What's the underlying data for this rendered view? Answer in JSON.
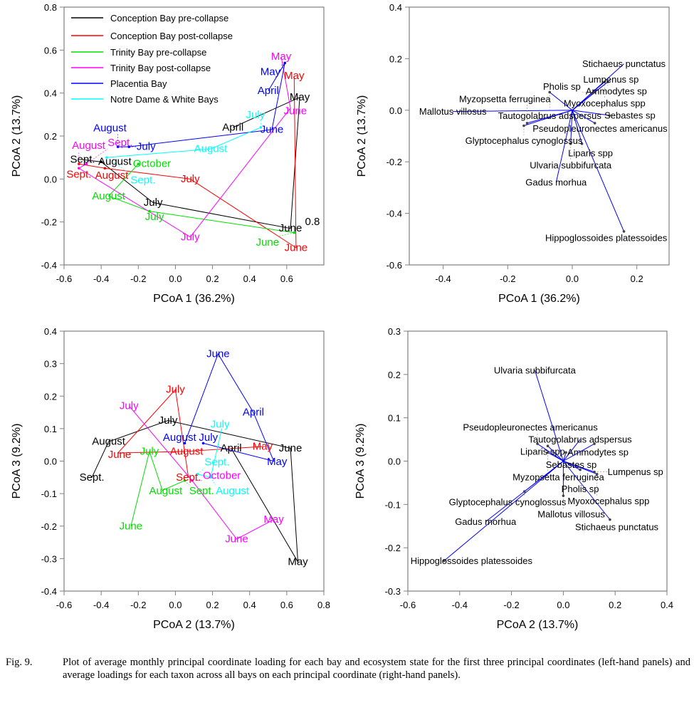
{
  "chart_data": [
    {
      "type": "line",
      "panel": "top-left",
      "xlabel": "PCoA 1 (36.2%)",
      "ylabel": "PCoA 2 (13.7%)",
      "xlim": [
        -0.6,
        0.8
      ],
      "ylim": [
        -0.4,
        0.8
      ],
      "xticks": [
        "-0.6",
        "-0.4",
        "-0.2",
        "0.0",
        "0.2",
        "0.4",
        "0.6"
      ],
      "yticks": [
        "-0.4",
        "-0.2",
        "0.0",
        "0.2",
        "0.4",
        "0.6",
        "0.8"
      ],
      "legend_position": "top-left",
      "annotation": {
        "text": "0.8",
        "x": 0.72,
        "y": -0.2
      },
      "series": [
        {
          "name": "Conception Bay pre-collapse",
          "color": "#000000",
          "points": [
            {
              "label": "Sept.",
              "x": -0.5,
              "y": 0.09
            },
            {
              "label": "August",
              "x": -0.4,
              "y": 0.08
            },
            {
              "label": "July",
              "x": -0.12,
              "y": -0.11
            },
            {
              "label": "June",
              "x": 0.62,
              "y": -0.23
            },
            {
              "label": "May",
              "x": 0.67,
              "y": 0.38
            },
            {
              "label": "April",
              "x": 0.31,
              "y": 0.24
            }
          ]
        },
        {
          "name": "Conception Bay post-collapse",
          "color": "#ff0000",
          "points": [
            {
              "label": "May",
              "x": 0.64,
              "y": 0.48
            },
            {
              "label": "June",
              "x": 0.65,
              "y": -0.32
            },
            {
              "label": "July",
              "x": 0.08,
              "y": 0.0
            },
            {
              "label": "August",
              "x": -0.38,
              "y": 0.05
            },
            {
              "label": "Sept.",
              "x": -0.52,
              "y": 0.07
            }
          ]
        },
        {
          "name": "Trinity Bay pre-collapse",
          "color": "#00e000",
          "points": [
            {
              "label": "June",
              "x": 0.64,
              "y": -0.25
            },
            {
              "label": "July",
              "x": -0.14,
              "y": -0.15
            },
            {
              "label": "August",
              "x": -0.36,
              "y": -0.08
            },
            {
              "label": "October",
              "x": -0.2,
              "y": 0.07
            }
          ]
        },
        {
          "name": "Trinity Bay post-collapse",
          "color": "#ff00ff",
          "points": [
            {
              "label": "May",
              "x": 0.57,
              "y": 0.57
            },
            {
              "label": "June",
              "x": 0.62,
              "y": 0.33
            },
            {
              "label": "July",
              "x": 0.08,
              "y": -0.27
            },
            {
              "label": "August",
              "x": -0.52,
              "y": 0.05
            },
            {
              "label": "Sept.",
              "x": -0.48,
              "y": 0.07
            }
          ]
        },
        {
          "name": "Placentia Bay",
          "color": "#0000ff",
          "points": [
            {
              "label": "April",
              "x": 0.5,
              "y": 0.41
            },
            {
              "label": "May",
              "x": 0.59,
              "y": 0.54
            },
            {
              "label": "June",
              "x": 0.52,
              "y": 0.23
            },
            {
              "label": "July",
              "x": -0.25,
              "y": 0.15
            },
            {
              "label": "August",
              "x": -0.31,
              "y": 0.15
            }
          ]
        },
        {
          "name": "Notre Dame & White Bays",
          "color": "#00ffff",
          "points": [
            {
              "label": "July",
              "x": 0.46,
              "y": 0.24
            },
            {
              "label": "August",
              "x": 0.19,
              "y": 0.14
            },
            {
              "label": "Sept.",
              "x": -0.37,
              "y": 0.1
            }
          ]
        }
      ]
    },
    {
      "type": "biplot",
      "panel": "top-right",
      "xlabel": "PCoA 1 (36.2%)",
      "ylabel": "PCoA 2 (13.7%)",
      "xlim": [
        -0.505,
        0.3
      ],
      "ylim": [
        -0.6,
        0.4
      ],
      "xticks": [
        "-0.4",
        "-0.2",
        "0.0",
        "0.2"
      ],
      "yticks": [
        "-0.6",
        "-0.4",
        "-0.2",
        "0.0",
        "0.2",
        "0.4"
      ],
      "vector_color": "#0000ff",
      "vectors": [
        {
          "label": "Stichaeus punctatus",
          "x": 0.16,
          "y": 0.18
        },
        {
          "label": "Lumpenus sp",
          "x": 0.12,
          "y": 0.12
        },
        {
          "label": "Ammodytes sp",
          "x": 0.11,
          "y": 0.11
        },
        {
          "label": "Myoxocephalus spp",
          "x": 0.1,
          "y": 0.11
        },
        {
          "label": "Pholis sp",
          "x": 0.07,
          "y": 0.07
        },
        {
          "label": "Tautogolabrus adspersus",
          "x": -0.07,
          "y": 0.07
        },
        {
          "label": "Mallotus villosus",
          "x": -0.37,
          "y": -0.005
        },
        {
          "label": "Sebastes sp",
          "x": 0.115,
          "y": -0.02
        },
        {
          "label": "Pseudopleuronectes americanus",
          "x": 0.07,
          "y": -0.05
        },
        {
          "label": "Glyptocephalus cynoglossus",
          "x": -0.15,
          "y": -0.06
        },
        {
          "label": "Myzopsetta ferruginea",
          "x": -0.14,
          "y": -0.05
        },
        {
          "label": "Liparis spp",
          "x": 0.03,
          "y": -0.13
        },
        {
          "label": "Ulvaria subbifurcata",
          "x": -0.005,
          "y": -0.13
        },
        {
          "label": "Gadus morhua",
          "x": -0.05,
          "y": -0.28
        },
        {
          "label": "Hippoglossoides platessoides",
          "x": 0.16,
          "y": -0.47
        }
      ]
    },
    {
      "type": "line",
      "panel": "bottom-left",
      "xlabel": "PCoA 2 (13.7%)",
      "ylabel": "PCoA 3 (9.2%)",
      "xlim": [
        -0.6,
        0.8
      ],
      "ylim": [
        -0.4,
        0.4
      ],
      "xticks": [
        "-0.6",
        "-0.4",
        "-0.2",
        "0.0",
        "0.2",
        "0.4",
        "0.6",
        "0.8"
      ],
      "yticks": [
        "-0.4",
        "-0.3",
        "-0.2",
        "-0.1",
        "0.0",
        "0.1",
        "0.2",
        "0.3",
        "0.4"
      ],
      "series": [
        {
          "name": "Conception Bay pre-collapse",
          "color": "#000000",
          "points": [
            {
              "label": "Sept.",
              "x": -0.45,
              "y": -0.05
            },
            {
              "label": "August",
              "x": -0.36,
              "y": 0.06
            },
            {
              "label": "July",
              "x": -0.04,
              "y": 0.125
            },
            {
              "label": "June",
              "x": 0.62,
              "y": 0.04
            },
            {
              "label": "May",
              "x": 0.66,
              "y": -0.31
            },
            {
              "label": "April",
              "x": 0.3,
              "y": 0.04
            }
          ]
        },
        {
          "name": "Conception Bay post-collapse",
          "color": "#ff0000",
          "points": [
            {
              "label": "May",
              "x": 0.47,
              "y": 0.045
            },
            {
              "label": "August",
              "x": 0.06,
              "y": 0.03
            },
            {
              "label": "June",
              "x": -0.31,
              "y": 0.025
            },
            {
              "label": "July",
              "x": 0.0,
              "y": 0.22
            },
            {
              "label": "Sept.",
              "x": 0.07,
              "y": -0.05
            }
          ]
        },
        {
          "name": "Trinity Bay pre-collapse",
          "color": "#00e000",
          "points": [
            {
              "label": "June",
              "x": -0.24,
              "y": -0.2
            },
            {
              "label": "July",
              "x": -0.14,
              "y": 0.03
            },
            {
              "label": "August",
              "x": -0.07,
              "y": -0.09
            },
            {
              "label": "Sept.",
              "x": 0.05,
              "y": -0.06
            }
          ]
        },
        {
          "name": "Trinity Bay post-collapse",
          "color": "#ff00ff",
          "points": [
            {
              "label": "July",
              "x": -0.25,
              "y": 0.17
            },
            {
              "label": "October",
              "x": 0.09,
              "y": -0.06
            },
            {
              "label": "June",
              "x": 0.33,
              "y": -0.24
            },
            {
              "label": "May",
              "x": 0.53,
              "y": -0.18
            }
          ]
        },
        {
          "name": "Placentia Bay",
          "color": "#0000ff",
          "points": [
            {
              "label": "August",
              "x": 0.05,
              "y": 0.055
            },
            {
              "label": "June",
              "x": 0.23,
              "y": 0.33
            },
            {
              "label": "April",
              "x": 0.42,
              "y": 0.15
            },
            {
              "label": "May",
              "x": 0.53,
              "y": 0.0
            },
            {
              "label": "July",
              "x": 0.15,
              "y": 0.055
            }
          ]
        },
        {
          "name": "Notre Dame & White Bays",
          "color": "#00ffff",
          "points": [
            {
              "label": "July",
              "x": 0.25,
              "y": 0.1
            },
            {
              "label": "August",
              "x": 0.19,
              "y": -0.05
            },
            {
              "label": "Sept.",
              "x": 0.12,
              "y": -0.04
            }
          ]
        }
      ]
    },
    {
      "type": "biplot",
      "panel": "bottom-right",
      "xlabel": "PCoA 2 (13.7%)",
      "ylabel": "PCoA 3 (9.2%)",
      "xlim": [
        -0.6,
        0.4
      ],
      "ylim": [
        -0.3,
        0.3
      ],
      "xticks": [
        "-0.6",
        "-0.4",
        "-0.2",
        "0.0",
        "0.2",
        "0.4"
      ],
      "yticks": [
        "-0.3",
        "-0.2",
        "-0.1",
        "0.0",
        "0.1",
        "0.2",
        "0.3"
      ],
      "vector_color": "#0000ff",
      "vectors": [
        {
          "label": "Ulvaria subbifurcata",
          "x": -0.11,
          "y": 0.21
        },
        {
          "label": "Tautogolabrus adspersus",
          "x": 0.065,
          "y": 0.05
        },
        {
          "label": "Ammodytes sp",
          "x": 0.12,
          "y": 0.04
        },
        {
          "label": "Liparis spp",
          "x": -0.06,
          "y": 0.035
        },
        {
          "label": "Pseudopleuronectes americanus",
          "x": -0.1,
          "y": 0.04
        },
        {
          "label": "Sebastes sp",
          "x": 0.01,
          "y": 0.02
        },
        {
          "label": "Myzopsetta ferruginea",
          "x": -0.06,
          "y": 0.02
        },
        {
          "label": "Pholis sp",
          "x": 0.065,
          "y": -0.02
        },
        {
          "label": "Lumpenus sp",
          "x": 0.12,
          "y": -0.025
        },
        {
          "label": "Myoxocephalus spp",
          "x": 0.13,
          "y": -0.03
        },
        {
          "label": "Glyptocephalus cynoglossus",
          "x": -0.15,
          "y": -0.07
        },
        {
          "label": "Mallotus villosus",
          "x": 0.0,
          "y": -0.08
        },
        {
          "label": "Stichaeus punctatus",
          "x": 0.18,
          "y": -0.135
        },
        {
          "label": "Gadus morhua",
          "x": -0.3,
          "y": -0.14
        },
        {
          "label": "Hippoglossoides platessoides",
          "x": -0.46,
          "y": -0.23
        }
      ]
    }
  ],
  "caption": {
    "number": "Fig. 9.",
    "text": "Plot of average monthly principal coordinate loading for each bay and ecosystem state for the first three principal coordinates (left-hand panels) and average loadings for each taxon across all bays on each principal coordinate (right-hand panels)."
  }
}
